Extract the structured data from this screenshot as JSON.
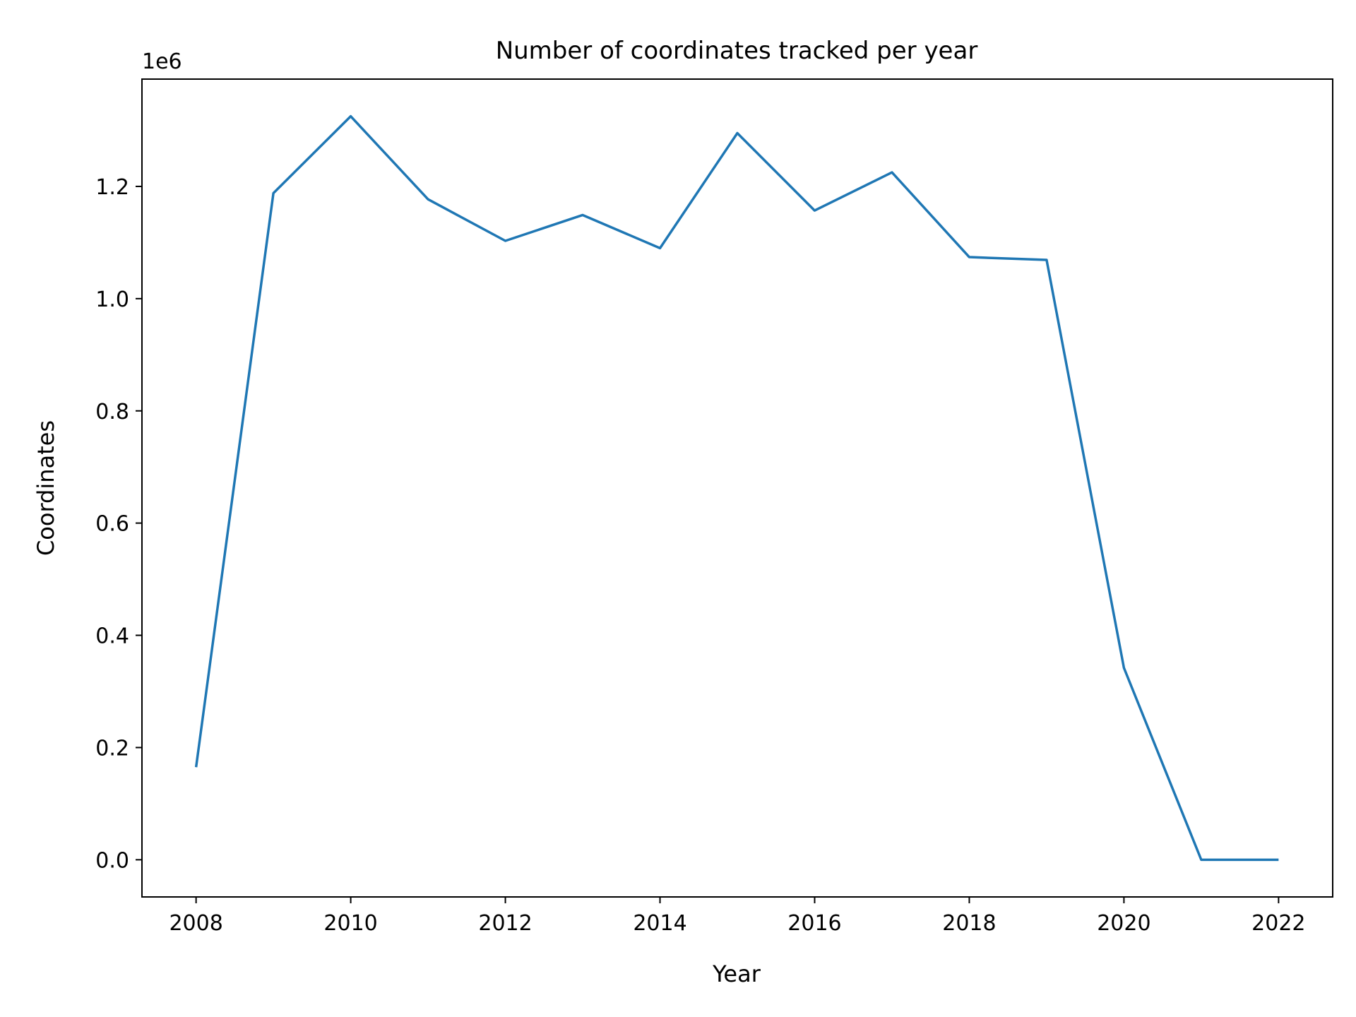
{
  "chart_data": {
    "type": "line",
    "title": "Number of coordinates tracked per year",
    "xlabel": "Year",
    "ylabel": "Coordinates",
    "offset_label": "1e6",
    "x": [
      2008,
      2009,
      2010,
      2011,
      2012,
      2013,
      2014,
      2015,
      2016,
      2017,
      2018,
      2019,
      2020,
      2021,
      2022
    ],
    "series": [
      {
        "values": [
          165000,
          1188000,
          1325000,
          1177000,
          1103000,
          1149000,
          1090000,
          1295000,
          1157000,
          1225000,
          1074000,
          1069000,
          342000,
          0,
          0
        ]
      }
    ],
    "xticks": [
      2008,
      2010,
      2012,
      2014,
      2016,
      2018,
      2020,
      2022
    ],
    "xtick_labels": [
      "2008",
      "2010",
      "2012",
      "2014",
      "2016",
      "2018",
      "2020",
      "2022"
    ],
    "yticks": [
      0,
      200000,
      400000,
      600000,
      800000,
      1000000,
      1200000
    ],
    "ytick_labels": [
      "0.0",
      "0.2",
      "0.4",
      "0.6",
      "0.8",
      "1.0",
      "1.2"
    ],
    "xlim": [
      2007.3,
      2022.7
    ],
    "ylim": [
      -66250,
      1391250
    ],
    "grid": false,
    "line_color": "#1f77b4"
  }
}
